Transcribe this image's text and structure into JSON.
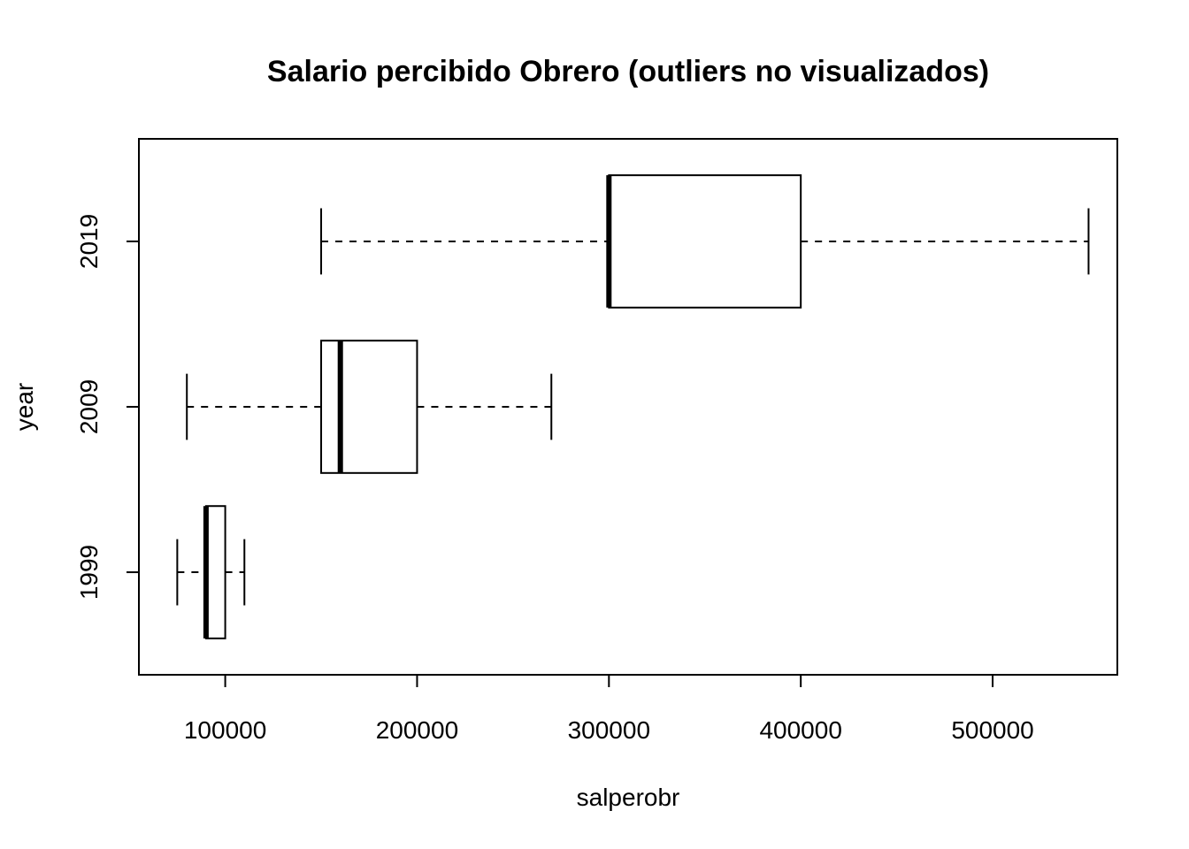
{
  "chart_data": {
    "type": "boxplot",
    "orientation": "horizontal",
    "title": "Salario percibido Obrero (outliers no visualizados)",
    "xlabel": "salperobr",
    "ylabel": "year",
    "xlim": [
      55000,
      565000
    ],
    "x_ticks": [
      100000,
      200000,
      300000,
      400000,
      500000
    ],
    "x_tick_labels": [
      "100000",
      "200000",
      "300000",
      "400000",
      "500000"
    ],
    "categories": [
      "1999",
      "2009",
      "2019"
    ],
    "boxes": [
      {
        "label": "1999",
        "whisker_low": 75000,
        "q1": 90000,
        "median": 90000,
        "q3": 100000,
        "whisker_high": 110000
      },
      {
        "label": "2009",
        "whisker_low": 80000,
        "q1": 150000,
        "median": 160000,
        "q3": 200000,
        "whisker_high": 270000
      },
      {
        "label": "2019",
        "whisker_low": 150000,
        "q1": 300000,
        "median": 300000,
        "q3": 400000,
        "whisker_high": 550000
      }
    ],
    "grid": false,
    "legend": "none"
  }
}
